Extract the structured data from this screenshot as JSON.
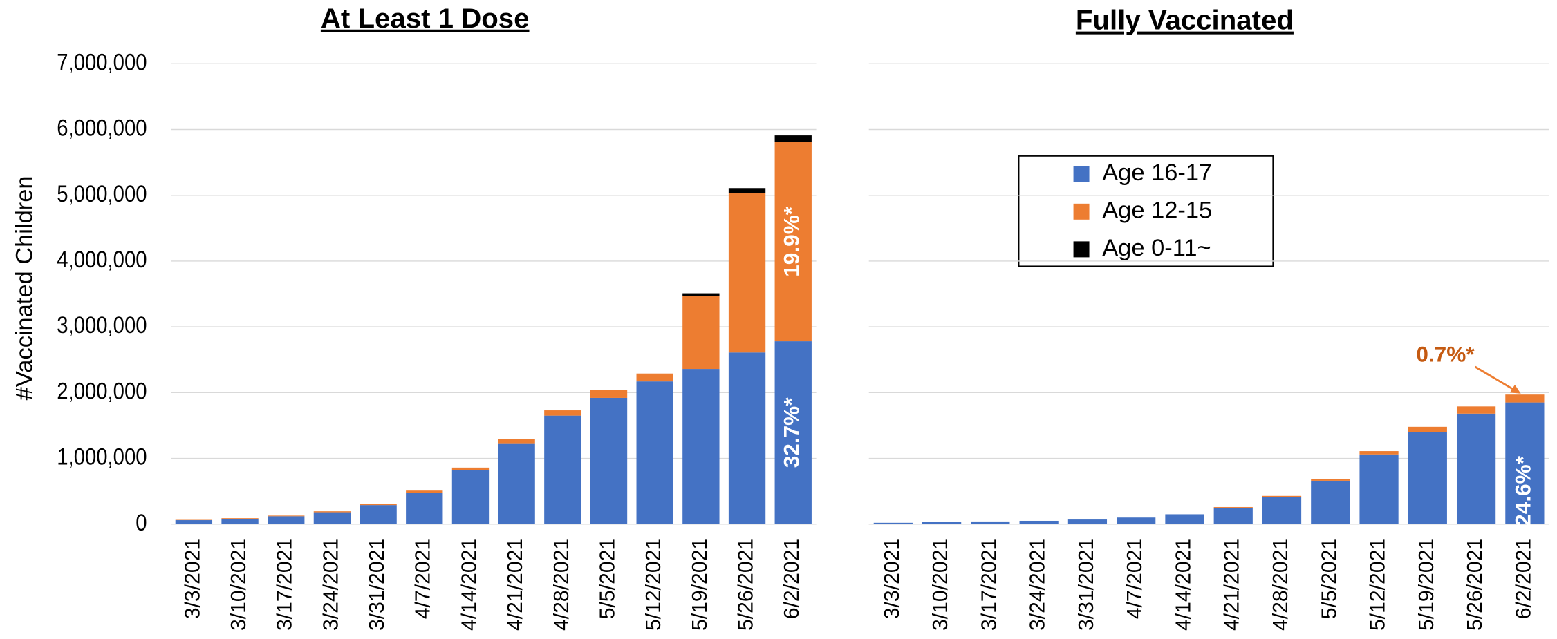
{
  "chart_data": [
    {
      "type": "bar",
      "stacked": true,
      "title": "At Least 1 Dose",
      "ylabel": "#Vaccinated Children",
      "categories": [
        "3/3/2021",
        "3/10/2021",
        "3/17/2021",
        "3/24/2021",
        "3/31/2021",
        "4/7/2021",
        "4/14/2021",
        "4/21/2021",
        "4/28/2021",
        "5/5/2021",
        "5/12/2021",
        "5/19/2021",
        "5/26/2021",
        "6/2/2021"
      ],
      "series": [
        {
          "name": "Age 16-17",
          "color": "#4472c4",
          "values": [
            60000,
            80000,
            120000,
            180000,
            290000,
            480000,
            820000,
            1230000,
            1650000,
            1920000,
            2170000,
            2360000,
            2610000,
            2780000
          ]
        },
        {
          "name": "Age 12-15",
          "color": "#ed7d31",
          "values": [
            5000,
            10000,
            10000,
            15000,
            20000,
            30000,
            40000,
            60000,
            80000,
            120000,
            120000,
            1110000,
            2420000,
            3030000
          ]
        },
        {
          "name": "Age 0-11~",
          "color": "#000000",
          "values": [
            0,
            0,
            0,
            0,
            0,
            0,
            0,
            0,
            0,
            0,
            0,
            40000,
            80000,
            100000
          ]
        }
      ],
      "ylim": [
        0,
        7000000
      ],
      "yticks": [
        0,
        {
          "value": 1000000,
          "label": "1,000,000"
        },
        {
          "value": 2000000,
          "label": "2,000,000"
        },
        {
          "value": 3000000,
          "label": "3,000,000"
        },
        {
          "value": 4000000,
          "label": "4,000,000"
        },
        {
          "value": 5000000,
          "label": "5,000,000"
        },
        {
          "value": 6000000,
          "label": "6,000,000"
        },
        {
          "value": 7000000,
          "label": "7,000,000"
        }
      ],
      "grid": true,
      "annotations": [
        "32.7%*",
        "19.9%*"
      ]
    },
    {
      "type": "bar",
      "stacked": true,
      "title": "Fully Vaccinated",
      "categories": [
        "3/3/2021",
        "3/10/2021",
        "3/17/2021",
        "3/24/2021",
        "3/31/2021",
        "4/7/2021",
        "4/14/2021",
        "4/21/2021",
        "4/28/2021",
        "5/5/2021",
        "5/12/2021",
        "5/19/2021",
        "5/26/2021",
        "6/2/2021"
      ],
      "series": [
        {
          "color": "#4472c4",
          "values": [
            20000,
            30000,
            40000,
            50000,
            70000,
            100000,
            150000,
            250000,
            410000,
            660000,
            1060000,
            1400000,
            1680000,
            1850000
          ]
        },
        {
          "color": "#ed7d31",
          "values": [
            0,
            0,
            0,
            0,
            0,
            0,
            0,
            10000,
            20000,
            30000,
            50000,
            80000,
            110000,
            120000
          ]
        }
      ],
      "ylim": [
        0,
        7000000
      ],
      "yticks": [
        0,
        1000000,
        2000000,
        3000000,
        4000000,
        5000000,
        6000000,
        7000000
      ],
      "grid": true,
      "annotations": [
        "24.6%*",
        "0.7%*"
      ]
    }
  ]
}
